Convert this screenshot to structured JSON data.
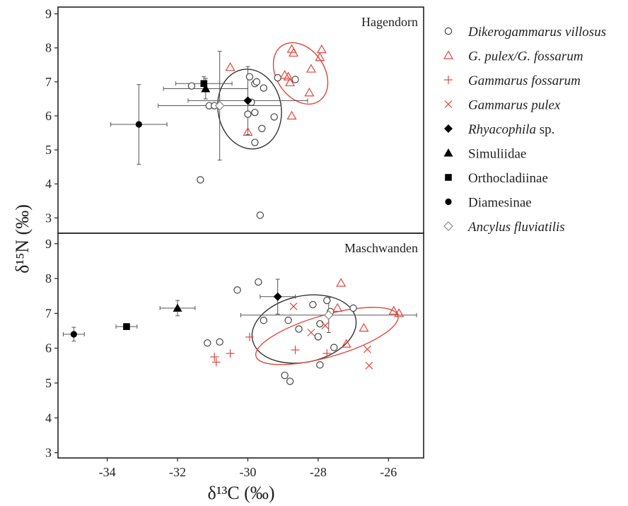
{
  "chart_data": {
    "type": "scatter",
    "xlabel": "δ¹³C (‰)",
    "ylabel": "δ¹⁵N (‰)",
    "xlim": [
      -35.4,
      -25.0
    ],
    "x_ticks": [
      -34,
      -32,
      -30,
      -28,
      -26
    ],
    "legend_position": "right",
    "legend": [
      {
        "label": "Dikerogammarus villosus",
        "marker": "circle-open",
        "color": "#444444",
        "italic": true
      },
      {
        "label": "G. pulex/G. fossarum",
        "marker": "triangle-open",
        "color": "#e0463c",
        "italic": true
      },
      {
        "label": "Gammarus fossarum",
        "marker": "plus",
        "color": "#e0463c",
        "italic": true
      },
      {
        "label": "Gammarus pulex",
        "marker": "cross",
        "color": "#e0463c",
        "italic": true
      },
      {
        "label": "Rhyacophila",
        "suffix": " sp.",
        "marker": "diamond-filled",
        "color": "#000000",
        "italic": true
      },
      {
        "label": "Simuliidae",
        "marker": "triangle-filled",
        "color": "#000000",
        "italic": false
      },
      {
        "label": "Orthocladiinae",
        "marker": "square-filled",
        "color": "#000000",
        "italic": false
      },
      {
        "label": "Diamesinae",
        "marker": "circle-filled",
        "color": "#000000",
        "italic": false
      },
      {
        "label": "Ancylus fluviatilis",
        "marker": "diamond-open",
        "color": "#888888",
        "italic": true
      }
    ],
    "panels": [
      {
        "name": "Hagendorn",
        "ylim": [
          2.55,
          9.2
        ],
        "y_ticks": [
          3,
          4,
          5,
          6,
          7,
          8,
          9
        ],
        "series": [
          {
            "name": "Dikerogammarus villosus",
            "marker": "circle-open",
            "points": [
              [
                -31.6,
                6.88
              ],
              [
                -31.1,
                6.3
              ],
              [
                -30.95,
                6.3
              ],
              [
                -31.35,
                4.12
              ],
              [
                -29.95,
                7.15
              ],
              [
                -29.8,
                6.95
              ],
              [
                -29.75,
                7.0
              ],
              [
                -29.55,
                6.82
              ],
              [
                -29.9,
                6.4
              ],
              [
                -29.8,
                6.1
              ],
              [
                -30.0,
                6.05
              ],
              [
                -29.6,
                5.63
              ],
              [
                -29.8,
                5.22
              ],
              [
                -29.25,
                5.97
              ],
              [
                -29.15,
                7.12
              ],
              [
                -28.65,
                7.07
              ],
              [
                -29.65,
                3.08
              ]
            ]
          },
          {
            "name": "G. pulex/G. fossarum",
            "marker": "triangle-open",
            "points": [
              [
                -30.5,
                7.43
              ],
              [
                -30.0,
                5.52
              ],
              [
                -28.95,
                7.2
              ],
              [
                -28.85,
                7.15
              ],
              [
                -28.8,
                6.98
              ],
              [
                -28.75,
                7.96
              ],
              [
                -28.7,
                7.85
              ],
              [
                -28.75,
                6.0
              ],
              [
                -28.25,
                6.68
              ],
              [
                -28.2,
                7.38
              ],
              [
                -27.95,
                7.72
              ],
              [
                -27.9,
                7.95
              ]
            ]
          }
        ],
        "taxa_means": [
          {
            "name": "Rhyacophila sp.",
            "marker": "diamond-filled",
            "x": -30.0,
            "y": 6.45,
            "x_err": 1.7,
            "y_err": 1.0
          },
          {
            "name": "Simuliidae",
            "marker": "triangle-filled",
            "x": -31.2,
            "y": 6.8,
            "x_err": 1.2,
            "y_err": 0.3
          },
          {
            "name": "Orthocladiinae",
            "marker": "square-filled",
            "x": -31.25,
            "y": 6.95,
            "x_err": 0.8,
            "y_err": 0.2
          },
          {
            "name": "Diamesinae",
            "marker": "circle-filled",
            "x": -33.1,
            "y": 5.75,
            "x_err": 0.8,
            "y_err": 1.17
          },
          {
            "name": "Ancylus fluviatilis",
            "marker": "diamond-open",
            "x": -30.8,
            "y": 6.3,
            "x_err": 1.75,
            "y_err": 1.6
          }
        ],
        "ellipses": [
          {
            "series": "Dikerogammarus villosus",
            "color": "#333333",
            "cx": -29.95,
            "cy": 6.2,
            "rx": 0.9,
            "ry": 1.18,
            "angle": -10
          },
          {
            "series": "G. pulex/G. fossarum",
            "color": "#e0463c",
            "cx": -28.5,
            "cy": 7.25,
            "rx": 0.68,
            "ry": 0.98,
            "angle": -34
          }
        ]
      },
      {
        "name": "Maschwanden",
        "ylim": [
          2.85,
          9.3
        ],
        "y_ticks": [
          3,
          4,
          5,
          6,
          7,
          8,
          9
        ],
        "series": [
          {
            "name": "Dikerogammarus villosus",
            "marker": "circle-open",
            "points": [
              [
                -31.15,
                6.15
              ],
              [
                -30.8,
                6.18
              ],
              [
                -30.3,
                7.67
              ],
              [
                -29.7,
                7.9
              ],
              [
                -29.55,
                6.8
              ],
              [
                -28.85,
                6.8
              ],
              [
                -28.95,
                5.22
              ],
              [
                -28.8,
                5.05
              ],
              [
                -28.55,
                6.55
              ],
              [
                -28.15,
                7.25
              ],
              [
                -28.0,
                6.33
              ],
              [
                -27.95,
                5.52
              ],
              [
                -27.95,
                6.7
              ],
              [
                -27.75,
                7.37
              ],
              [
                -27.65,
                7.05
              ],
              [
                -27.55,
                6.02
              ],
              [
                -27.0,
                7.15
              ]
            ]
          },
          {
            "name": "G. pulex/G. fossarum",
            "marker": "triangle-open",
            "points": [
              [
                -27.45,
                7.15
              ],
              [
                -27.35,
                7.87
              ],
              [
                -27.2,
                6.12
              ],
              [
                -26.7,
                6.58
              ],
              [
                -25.85,
                7.07
              ],
              [
                -25.7,
                7.0
              ]
            ]
          },
          {
            "name": "Gammarus fossarum",
            "marker": "plus",
            "points": [
              [
                -30.95,
                5.75
              ],
              [
                -30.9,
                5.6
              ],
              [
                -30.5,
                5.85
              ],
              [
                -29.95,
                6.32
              ],
              [
                -28.65,
                5.95
              ],
              [
                -27.75,
                5.85
              ]
            ]
          },
          {
            "name": "Gammarus pulex",
            "marker": "cross",
            "points": [
              [
                -28.7,
                7.2
              ],
              [
                -28.2,
                6.45
              ],
              [
                -27.8,
                6.65
              ],
              [
                -26.6,
                5.97
              ],
              [
                -26.55,
                5.5
              ]
            ]
          }
        ],
        "taxa_means": [
          {
            "name": "Rhyacophila sp.",
            "marker": "diamond-filled",
            "x": -29.15,
            "y": 7.48,
            "x_err": 0.5,
            "y_err": 0.5
          },
          {
            "name": "Simuliidae",
            "marker": "triangle-filled",
            "x": -32.0,
            "y": 7.15,
            "x_err": 0.5,
            "y_err": 0.22
          },
          {
            "name": "Orthocladiinae",
            "marker": "square-filled",
            "x": -33.45,
            "y": 6.62,
            "x_err": 0.3,
            "y_err": 0.07
          },
          {
            "name": "Diamesinae",
            "marker": "circle-filled",
            "x": -34.95,
            "y": 6.4,
            "x_err": 0.3,
            "y_err": 0.2
          },
          {
            "name": "Ancylus fluviatilis",
            "marker": "diamond-open",
            "x": -27.7,
            "y": 6.95,
            "x_err": 2.5,
            "y_err": 0.5
          }
        ],
        "ellipses": [
          {
            "series": "Dikerogammarus villosus",
            "color": "#333333",
            "cx": -28.4,
            "cy": 6.55,
            "rx": 1.5,
            "ry": 0.95,
            "angle": -12
          },
          {
            "series": "G. pulex/G. fossarum",
            "color": "#e0463c",
            "cx": -27.75,
            "cy": 6.35,
            "rx": 2.1,
            "ry": 0.6,
            "angle": -16
          }
        ]
      }
    ]
  }
}
